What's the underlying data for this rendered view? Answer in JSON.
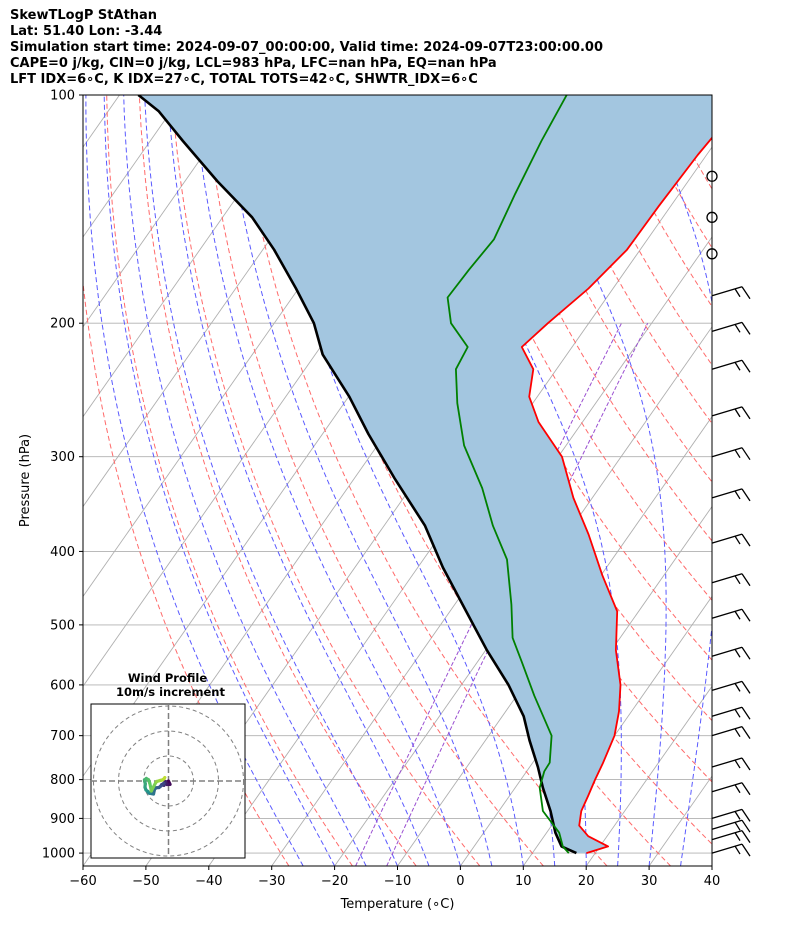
{
  "header": {
    "line1": "SkewTLogP StAthan",
    "line2": "Lat: 51.40   Lon: -3.44",
    "line3": "Simulation start time: 2024-09-07_00:00:00, Valid time: 2024-09-07T23:00:00.00",
    "line4": "CAPE=0 j/kg, CIN=0 j/kg, LCL=983 hPa, LFC=nan hPa, EQ=nan hPa",
    "line5": "LFT IDX=6∘C, K IDX=27∘C, TOTAL TOTS=42∘C, SHWTR_IDX=6∘C"
  },
  "chart_data": [
    {
      "type": "line",
      "subtype": "skew-T log-P diagram",
      "xlabel": "Temperature (∘C)",
      "ylabel": "Pressure (hPa)",
      "xlim": [
        -60,
        40
      ],
      "ylim": [
        1040,
        100
      ],
      "y_scale": "log",
      "x_ticks": [
        -60,
        -50,
        -40,
        -30,
        -20,
        -10,
        0,
        10,
        20,
        30,
        40
      ],
      "x_tick_labels": [
        "−60",
        "−50",
        "−40",
        "−30",
        "−20",
        "−10",
        "0",
        "10",
        "20",
        "30",
        "40"
      ],
      "y_ticks": [
        1000,
        900,
        800,
        700,
        600,
        500,
        400,
        300,
        200,
        100
      ],
      "y_tick_labels": [
        "1000",
        "900",
        "800",
        "700",
        "600",
        "500",
        "400",
        "300",
        "200",
        "100"
      ],
      "grid": true,
      "colors": {
        "temperature": "#ff0000",
        "dewpoint": "#008000",
        "parcel": "#000000",
        "fill": "#a3c6e0",
        "dry_adiabat": "#ff6a6a",
        "moist_adiabat": "#5a5aff",
        "mixing_ratio": "#9a4fd1",
        "isotherm": "#b0b0b0"
      },
      "series": [
        {
          "role": "temperature",
          "points": [
            [
              18.6,
              1000
            ],
            [
              21.3,
              980
            ],
            [
              17.0,
              950
            ],
            [
              14.4,
              920
            ],
            [
              13.1,
              880
            ],
            [
              12.5,
              840
            ],
            [
              11.8,
              800
            ],
            [
              11.2,
              760
            ],
            [
              10.0,
              700
            ],
            [
              8.0,
              650
            ],
            [
              5.3,
              600
            ],
            [
              0.7,
              540
            ],
            [
              -3.4,
              480
            ],
            [
              -9.8,
              430
            ],
            [
              -16.5,
              380
            ],
            [
              -23.0,
              340
            ],
            [
              -29.4,
              300
            ],
            [
              -37.0,
              270
            ],
            [
              -41.3,
              250
            ],
            [
              -43.7,
              230
            ],
            [
              -48.0,
              215
            ],
            [
              -46.5,
              200
            ],
            [
              -43.9,
              180
            ],
            [
              -42.1,
              160
            ],
            [
              -41.9,
              140
            ],
            [
              -41.4,
              120
            ],
            [
              -40.8,
              110
            ],
            [
              -39.7,
              100
            ]
          ]
        },
        {
          "role": "dewpoint",
          "points": [
            [
              15.8,
              1000
            ],
            [
              14.1,
              980
            ],
            [
              12.0,
              940
            ],
            [
              7.0,
              880
            ],
            [
              3.9,
              820
            ],
            [
              2.8,
              780
            ],
            [
              2.7,
              760
            ],
            [
              0.0,
              700
            ],
            [
              -7.2,
              620
            ],
            [
              -12.9,
              560
            ],
            [
              -17.1,
              520
            ],
            [
              -21.0,
              470
            ],
            [
              -26.7,
              410
            ],
            [
              -32.7,
              370
            ],
            [
              -38.6,
              330
            ],
            [
              -46.2,
              290
            ],
            [
              -52.0,
              255
            ],
            [
              -56.0,
              230
            ],
            [
              -56.6,
              215
            ],
            [
              -61.9,
              200
            ],
            [
              -65.3,
              185
            ],
            [
              -65.0,
              170
            ],
            [
              -64.4,
              155
            ],
            [
              -66.1,
              135
            ],
            [
              -67.8,
              115
            ],
            [
              -68.9,
              100
            ]
          ]
        },
        {
          "role": "parcel",
          "points": [
            [
              17.0,
              1000
            ],
            [
              13.9,
              980
            ],
            [
              11.4,
              940
            ],
            [
              8.2,
              880
            ],
            [
              4.4,
              820
            ],
            [
              1.3,
              770
            ],
            [
              -3.0,
              710
            ],
            [
              -6.6,
              660
            ],
            [
              -12.5,
              600
            ],
            [
              -19.8,
              540
            ],
            [
              -27.4,
              480
            ],
            [
              -36.0,
              420
            ],
            [
              -43.5,
              370
            ],
            [
              -53.7,
              320
            ],
            [
              -62.7,
              280
            ],
            [
              -69.9,
              250
            ],
            [
              -78.8,
              220
            ],
            [
              -83.7,
              200
            ],
            [
              -90.4,
              180
            ],
            [
              -98.2,
              160
            ],
            [
              -105.3,
              145
            ],
            [
              -114.8,
              130
            ],
            [
              -124.8,
              115
            ],
            [
              -132.0,
              105
            ],
            [
              -137.0,
              100
            ]
          ]
        }
      ],
      "wind_barbs": {
        "pressures": [
          128,
          145,
          162,
          184,
          205,
          230,
          265,
          300,
          340,
          390,
          440,
          490,
          550,
          610,
          660,
          700,
          770,
          830,
          900,
          930,
          960,
          1000
        ],
        "types": [
          "calm",
          "calm",
          "calm",
          "barb",
          "barb",
          "barb",
          "barb",
          "barb",
          "barb",
          "barb",
          "barb",
          "barb",
          "barb",
          "barb",
          "barb",
          "barb",
          "barb",
          "barb",
          "barb",
          "barb",
          "barb",
          "barb"
        ]
      }
    },
    {
      "type": "line",
      "subtype": "hodograph",
      "title": "Wind Profile",
      "subtitle": "10m/s increment",
      "ring_increment": 10,
      "rings": 3,
      "series": [
        {
          "role": "hodograph",
          "colormap": "viridis",
          "points": [
            [
              0,
              0
            ],
            [
              0.6,
              -1.3
            ],
            [
              -0.6,
              -1.4
            ],
            [
              -1.2,
              -0.2
            ],
            [
              -1.8,
              -1.7
            ],
            [
              -2.8,
              -1.5
            ],
            [
              -1.9,
              -0.9
            ],
            [
              -3.2,
              -2.1
            ],
            [
              -3.8,
              -2.6
            ],
            [
              -5.0,
              -2.7
            ],
            [
              -5.6,
              -3.4
            ],
            [
              -6.0,
              -5.2
            ],
            [
              -7.5,
              -4.9
            ],
            [
              -7.8,
              -4.8
            ],
            [
              -8.3,
              -4.2
            ],
            [
              -9.0,
              -3.6
            ],
            [
              -9.4,
              -2.5
            ],
            [
              -9.3,
              -1.1
            ],
            [
              -9.6,
              0.4
            ],
            [
              -8.9,
              1.0
            ],
            [
              -8.0,
              0.5
            ],
            [
              -7.5,
              -0.9
            ],
            [
              -7.0,
              -3.1
            ],
            [
              -6.9,
              -4.0
            ],
            [
              -5.1,
              -0.6
            ],
            [
              -4.7,
              -0.2
            ],
            [
              -3.4,
              0.2
            ],
            [
              -2.5,
              0.4
            ],
            [
              -1.8,
              0.9
            ],
            [
              -1.5,
              1.4
            ]
          ]
        }
      ]
    }
  ]
}
